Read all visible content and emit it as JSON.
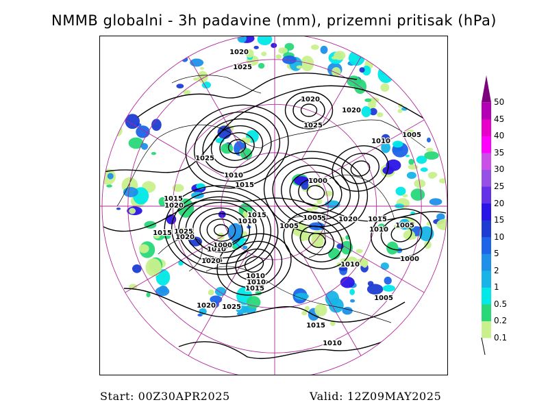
{
  "title": "NMMB globalni - 3h padavine (mm), prizemni pritisak (hPa)",
  "footer": {
    "start": "Start: 00Z30APR2025",
    "valid": "Valid: 12Z09MAY2025"
  },
  "legend": {
    "levels": [
      "0.1",
      "0.2",
      "0.5",
      "1",
      "2",
      "5",
      "10",
      "15",
      "20",
      "25",
      "30",
      "35",
      "40",
      "45",
      "50"
    ],
    "colors": [
      "#c8f08c",
      "#28d878",
      "#00e8e8",
      "#18b4e8",
      "#1e90e8",
      "#1e64e8",
      "#1e3cd2",
      "#2a14e6",
      "#6432e6",
      "#9650e6",
      "#c850e6",
      "#ff00ff",
      "#e600c8",
      "#b400b4",
      "#7d007d"
    ]
  },
  "map": {
    "projection": "north-polar-stereographic",
    "isobar_labels": [
      "1020",
      "1025",
      "1020",
      "1025",
      "1025",
      "1010",
      "1015",
      "1015",
      "1020",
      "1025",
      "1020",
      "1015",
      "1010",
      "1005",
      "1015",
      "1020",
      "1000",
      "1015",
      "1010",
      "1000",
      "1005",
      "1005",
      "1020",
      "1015",
      "1010",
      "1005",
      "1010",
      "1010",
      "1000",
      "1020",
      "1005",
      "1010",
      "1015",
      "1020",
      "1025",
      "1015",
      "1010",
      "1005",
      "1010"
    ]
  }
}
